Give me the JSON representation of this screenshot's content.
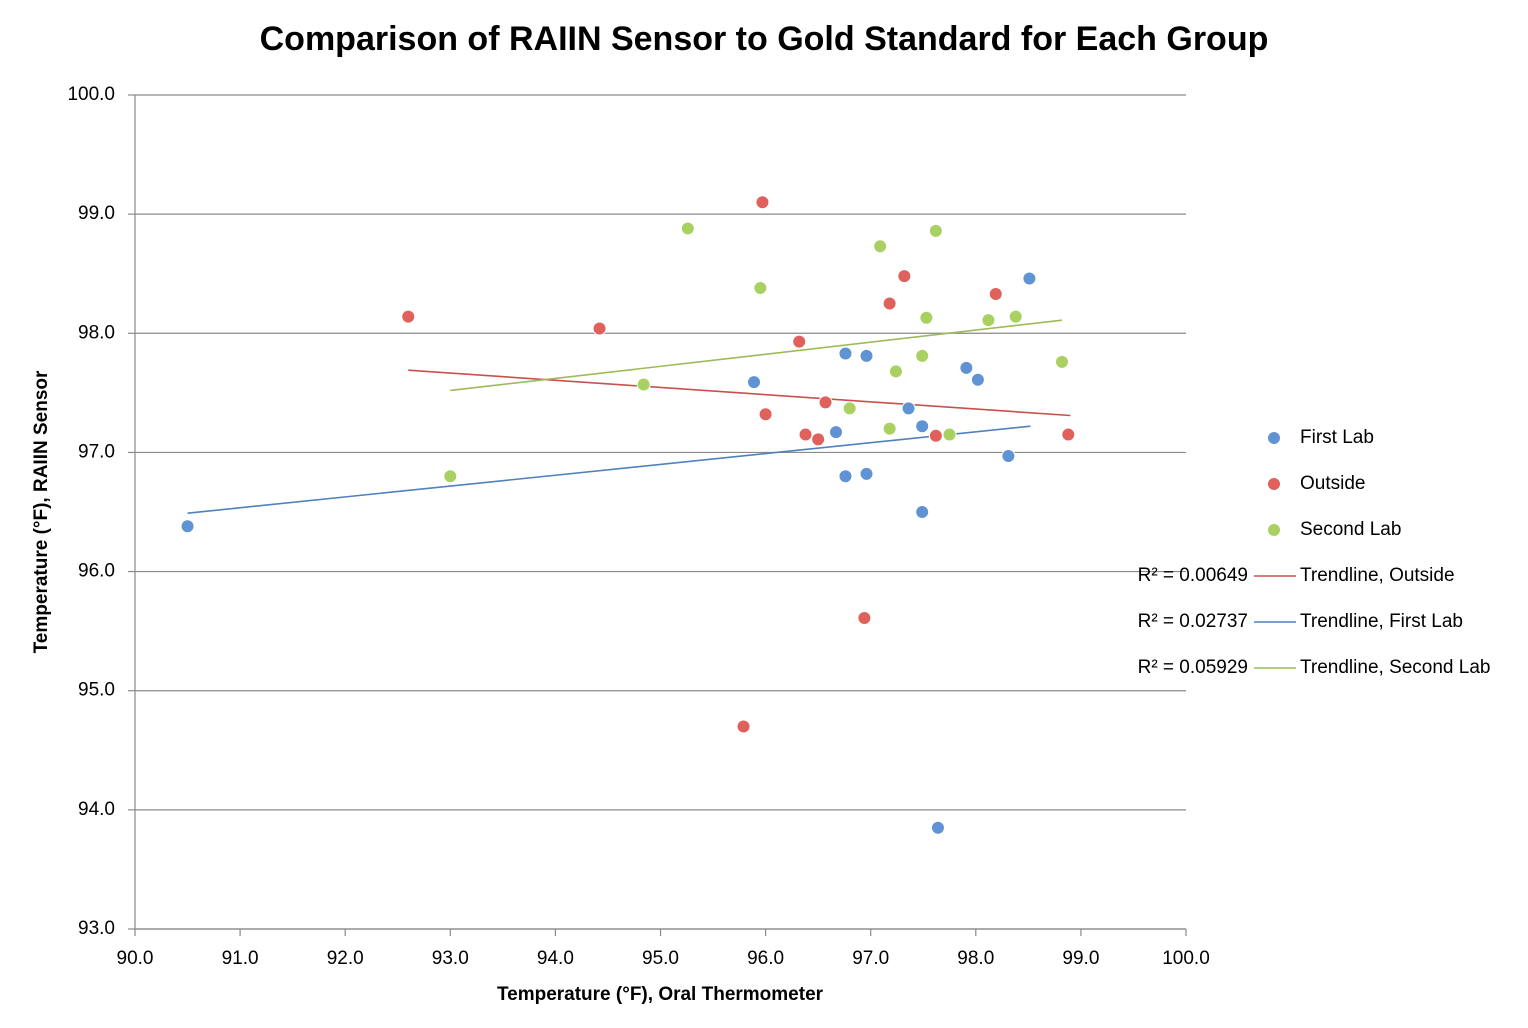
{
  "chart_data": {
    "type": "scatter",
    "title": "Comparison of RAIIN Sensor to Gold Standard for Each Group",
    "x_label": "Temperature (°F), Oral Thermometer",
    "y_label": "Temperature (°F), RAIIN Sensor",
    "xlim": [
      90,
      100
    ],
    "ylim": [
      93,
      100
    ],
    "xticks": [
      {
        "value": 90,
        "label": "90.0"
      },
      {
        "value": 91,
        "label": "91.0"
      },
      {
        "value": 92,
        "label": "92.0"
      },
      {
        "value": 93,
        "label": "93.0"
      },
      {
        "value": 94,
        "label": "94.0"
      },
      {
        "value": 95,
        "label": "95.0"
      },
      {
        "value": 96,
        "label": "96.0"
      },
      {
        "value": 97,
        "label": "97.0"
      },
      {
        "value": 98,
        "label": "98.0"
      },
      {
        "value": 99,
        "label": "99.0"
      },
      {
        "value": 100,
        "label": "100.0"
      }
    ],
    "yticks": [
      {
        "value": 93,
        "label": "93.0"
      },
      {
        "value": 94,
        "label": "94.0"
      },
      {
        "value": 95,
        "label": "95.0"
      },
      {
        "value": 96,
        "label": "96.0"
      },
      {
        "value": 97,
        "label": "97.0"
      },
      {
        "value": 98,
        "label": "98.0"
      },
      {
        "value": 99,
        "label": "99.0"
      },
      {
        "value": 100,
        "label": "100.0"
      }
    ],
    "grid": true,
    "legend": "right",
    "series": [
      {
        "name": "First Lab",
        "color": "#5f93d3",
        "x": [
          90.5,
          95.89,
          96.76,
          96.96,
          96.67,
          96.76,
          96.96,
          97.36,
          97.49,
          97.49,
          97.91,
          98.02,
          98.31,
          98.51,
          97.64
        ],
        "values": [
          96.38,
          97.59,
          97.83,
          97.81,
          97.17,
          96.8,
          96.82,
          97.37,
          97.22,
          96.5,
          97.71,
          97.61,
          96.97,
          98.46,
          93.85
        ]
      },
      {
        "name": "Outside",
        "color": "#e0605c",
        "x": [
          92.6,
          94.42,
          95.97,
          96.0,
          96.32,
          96.38,
          96.5,
          96.57,
          97.18,
          97.32,
          97.62,
          98.19,
          98.88,
          96.94,
          95.79
        ],
        "values": [
          98.14,
          98.04,
          99.1,
          97.32,
          97.93,
          97.15,
          97.11,
          97.42,
          98.25,
          98.48,
          97.14,
          98.33,
          97.15,
          95.61,
          94.7
        ]
      },
      {
        "name": "Second Lab",
        "color": "#a9d162",
        "x": [
          93.0,
          94.84,
          95.26,
          95.95,
          96.8,
          97.09,
          97.18,
          97.24,
          97.49,
          97.53,
          97.62,
          97.75,
          98.12,
          98.38,
          98.82
        ],
        "values": [
          96.8,
          97.57,
          98.88,
          98.38,
          97.37,
          98.73,
          97.2,
          97.68,
          97.81,
          98.13,
          98.86,
          97.15,
          98.11,
          98.14,
          97.76
        ]
      }
    ],
    "trendlines": [
      {
        "name": "Trendline, Outside",
        "color": "#c8504d",
        "r2": "R² = 0.00649",
        "x": [
          92.6,
          98.9
        ],
        "values": [
          97.69,
          97.31
        ]
      },
      {
        "name": "Trendline, First Lab",
        "color": "#4f81bd",
        "r2": "R² = 0.02737",
        "x": [
          90.5,
          98.52
        ],
        "values": [
          96.49,
          97.22
        ]
      },
      {
        "name": "Trendline, Second Lab",
        "color": "#9bbb59",
        "r2": "R² = 0.05929",
        "x": [
          93.0,
          98.82
        ],
        "values": [
          97.52,
          98.11
        ]
      }
    ]
  }
}
